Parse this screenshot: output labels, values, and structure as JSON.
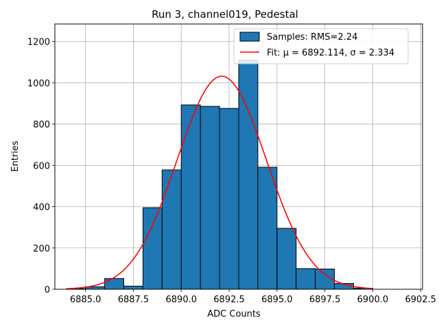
{
  "chart_data": {
    "type": "bar",
    "title": "Run 3, channel019, Pedestal",
    "xlabel": "ADC Counts",
    "ylabel": "Entries",
    "xlim": [
      6883.4,
      6902.6
    ],
    "ylim": [
      0,
      1285
    ],
    "xticks": [
      6885.0,
      6887.5,
      6890.0,
      6892.5,
      6895.0,
      6897.5,
      6900.0,
      6902.5
    ],
    "xtick_labels": [
      "6885.0",
      "6887.5",
      "6890.0",
      "6892.5",
      "6895.0",
      "6897.5",
      "6900.0",
      "6902.5"
    ],
    "yticks": [
      0,
      200,
      400,
      600,
      800,
      1000,
      1200
    ],
    "ytick_labels": [
      "0",
      "200",
      "400",
      "600",
      "800",
      "1000",
      "1200"
    ],
    "grid": true,
    "legend_position": "top-right",
    "bin_edges": [
      6884,
      6885,
      6886,
      6887,
      6888,
      6889,
      6890,
      6891,
      6892,
      6893,
      6894,
      6895,
      6896,
      6897,
      6898,
      6899,
      6900
    ],
    "series": [
      {
        "name": "Samples: RMS=2.24",
        "kind": "histogram",
        "color": "#1f77b4",
        "edge_color": "#000000",
        "values": [
          3,
          12,
          52,
          15,
          395,
          578,
          893,
          886,
          876,
          1110,
          591,
          295,
          100,
          98,
          28,
          5
        ]
      },
      {
        "name": "Fit: μ = 6892.114, σ = 2.334",
        "kind": "gaussian-fit",
        "color": "#ff0000",
        "mu": 6892.114,
        "sigma": 2.334,
        "amplitude": 1032,
        "x_range": [
          6884,
          6900
        ]
      }
    ],
    "legend": [
      {
        "label": "Samples: RMS=2.24",
        "marker": "patch"
      },
      {
        "label": "Fit: μ = 6892.114, σ = 2.334",
        "marker": "line"
      }
    ]
  }
}
